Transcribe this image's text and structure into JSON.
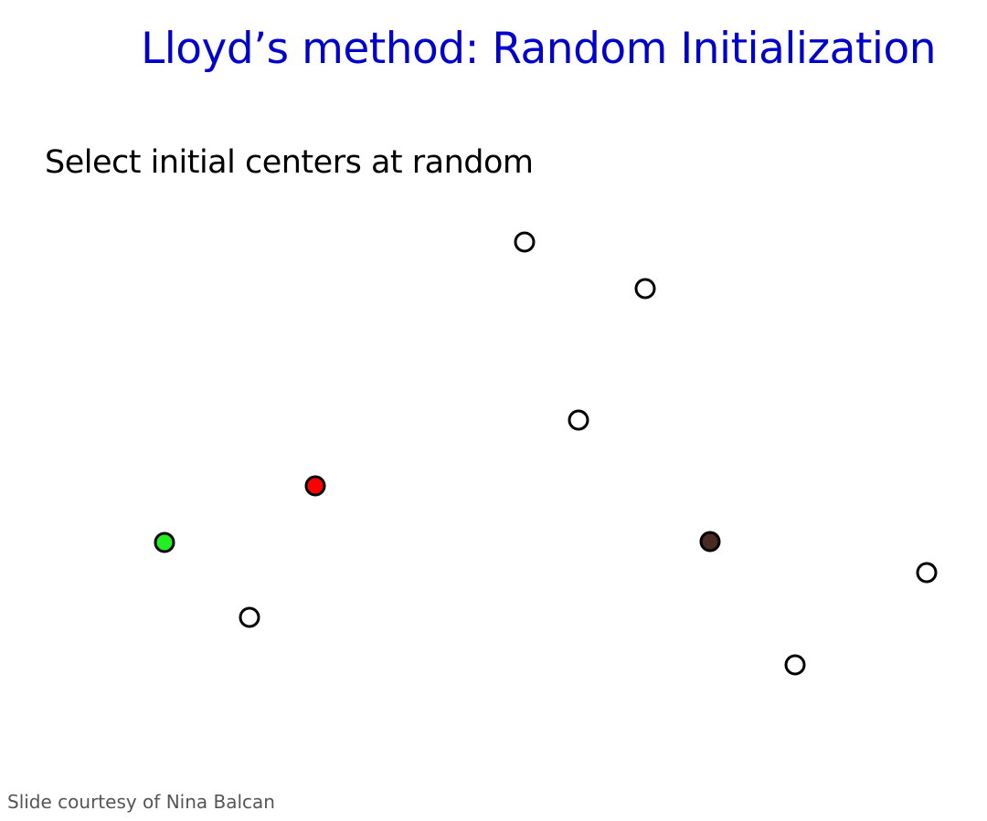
{
  "slide": {
    "title": "Lloyd’s method: Random Initialization",
    "subtitle": "Select initial centers at random",
    "credit": "Slide courtesy of Nina Balcan"
  },
  "colors": {
    "title": "#0000cc",
    "point_fill": "#ffffff",
    "point_stroke": "#000000",
    "center_red": "#ff0000",
    "center_green": "#22ee22",
    "center_brown": "#4a2a22"
  },
  "points": [
    {
      "kind": "data"
    },
    {
      "kind": "data"
    },
    {
      "kind": "data"
    },
    {
      "kind": "center",
      "color": "red"
    },
    {
      "kind": "center",
      "color": "green"
    },
    {
      "kind": "center",
      "color": "brown"
    },
    {
      "kind": "data"
    },
    {
      "kind": "data"
    },
    {
      "kind": "data"
    }
  ]
}
